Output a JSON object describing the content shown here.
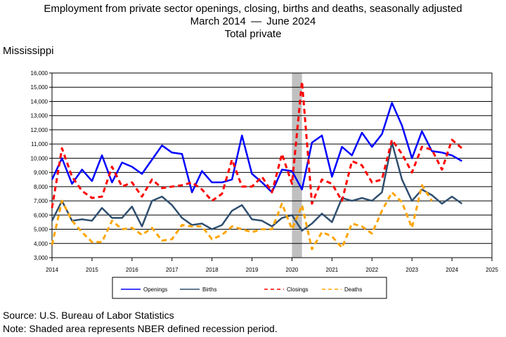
{
  "title": {
    "line1": "Employment from private sector openings, closing, births and deaths, seasonally adjusted",
    "line2_start": "March 2014",
    "line2_sep": "—",
    "line2_end": "June 2024",
    "line3": "Total private"
  },
  "region": "Mississippi",
  "footer": {
    "source": "Source: U.S. Bureau of Labor Statistics",
    "note": "Note: Shaded area represents NBER defined recession period."
  },
  "chart_data": {
    "type": "line",
    "xlim": [
      2014,
      2025
    ],
    "ylim": [
      3000,
      16000
    ],
    "x_ticks": [
      2014,
      2015,
      2016,
      2017,
      2018,
      2019,
      2020,
      2021,
      2022,
      2023,
      2024,
      2025
    ],
    "y_ticks": [
      3000,
      4000,
      5000,
      6000,
      7000,
      8000,
      9000,
      10000,
      11000,
      12000,
      13000,
      14000,
      15000,
      16000
    ],
    "y_tick_labels": [
      "3,000",
      "4,000",
      "5,000",
      "6,000",
      "7,000",
      "8,000",
      "9,000",
      "10,000",
      "11,000",
      "12,000",
      "13,000",
      "14,000",
      "15,000",
      "16,000"
    ],
    "grid": "horizontal",
    "recession": [
      2020.0,
      2020.25
    ],
    "recession_color": "#c0c0c0",
    "legend_position": "bottom",
    "x": [
      2014.0,
      2014.25,
      2014.5,
      2014.75,
      2015.0,
      2015.25,
      2015.5,
      2015.75,
      2016.0,
      2016.25,
      2016.5,
      2016.75,
      2017.0,
      2017.25,
      2017.5,
      2017.75,
      2018.0,
      2018.25,
      2018.5,
      2018.75,
      2019.0,
      2019.25,
      2019.5,
      2019.75,
      2020.0,
      2020.25,
      2020.5,
      2020.75,
      2021.0,
      2021.25,
      2021.5,
      2021.75,
      2022.0,
      2022.25,
      2022.5,
      2022.75,
      2023.0,
      2023.25,
      2023.5,
      2023.75,
      2024.0,
      2024.25
    ],
    "series": [
      {
        "name": "Openings",
        "color": "#0000ff",
        "dash": "solid",
        "values": [
          8500,
          10000,
          8200,
          9200,
          8400,
          10200,
          8300,
          9700,
          9400,
          8900,
          9900,
          10900,
          10400,
          10300,
          7600,
          9100,
          8300,
          8300,
          8500,
          11600,
          8900,
          8300,
          7600,
          9200,
          9100,
          7800,
          11100,
          11600,
          8700,
          10800,
          10200,
          11800,
          10800,
          11700,
          13900,
          12300,
          10000,
          11900,
          10500,
          10400,
          10200,
          9800
        ]
      },
      {
        "name": "Births",
        "color": "#2f4f6f",
        "dash": "solid",
        "values": [
          5600,
          7000,
          5600,
          5700,
          5600,
          6500,
          5800,
          5800,
          6600,
          5200,
          7000,
          7300,
          6700,
          5800,
          5300,
          5400,
          5000,
          5300,
          6300,
          6700,
          5700,
          5600,
          5200,
          5800,
          6000,
          4900,
          5400,
          6100,
          5500,
          7200,
          7000,
          7200,
          7000,
          7600,
          11100,
          8500,
          7000,
          7800,
          7400,
          6800,
          7300,
          6800
        ]
      },
      {
        "name": "Closings",
        "color": "#ff0000",
        "dash": "dashed",
        "values": [
          6500,
          10700,
          8700,
          7700,
          7200,
          7300,
          9400,
          8000,
          8300,
          7300,
          8500,
          7900,
          8000,
          8100,
          8300,
          7800,
          7000,
          7500,
          9900,
          8000,
          8000,
          8700,
          7600,
          10300,
          8200,
          15400,
          6800,
          8500,
          8200,
          7000,
          9800,
          9500,
          8300,
          8500,
          11300,
          10300,
          9000,
          10800,
          10600,
          9200,
          11300,
          10700
        ]
      },
      {
        "name": "Deaths",
        "color": "#ffa500",
        "dash": "dashed",
        "values": [
          3900,
          7000,
          5600,
          4800,
          4100,
          4100,
          5600,
          5000,
          5100,
          4600,
          5100,
          4200,
          4300,
          5300,
          5200,
          5200,
          4300,
          4600,
          5200,
          5000,
          4800,
          5000,
          5000,
          6800,
          5000,
          6700,
          3600,
          4800,
          4500,
          3700,
          5400,
          5200,
          4700,
          6300,
          7600,
          6900,
          5100,
          8100,
          7000,
          null,
          null,
          null
        ]
      }
    ]
  }
}
